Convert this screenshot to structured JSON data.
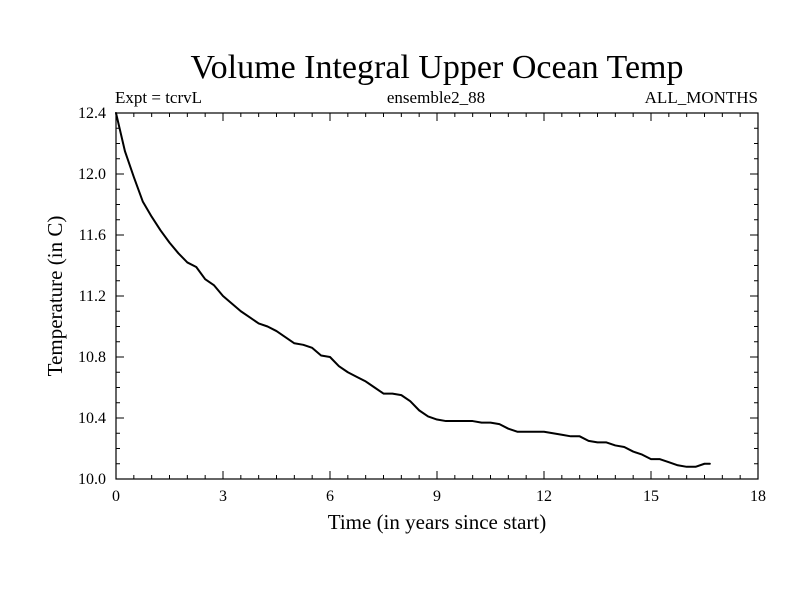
{
  "chart_data": {
    "type": "line",
    "title": "Volume Integral Upper Ocean Temp",
    "subtitle_left": "Expt = tcrvL",
    "subtitle_center": "ensemble2_88",
    "subtitle_right": "ALL_MONTHS",
    "xlabel": "Time (in years since start)",
    "ylabel": "Temperature (in C)",
    "xlim": [
      0,
      18
    ],
    "ylim": [
      10.0,
      12.4
    ],
    "xticks": [
      0,
      3,
      6,
      9,
      12,
      15,
      18
    ],
    "xtick_labels": [
      "0",
      "3",
      "6",
      "9",
      "12",
      "15",
      "18"
    ],
    "yticks": [
      10.0,
      10.4,
      10.8,
      11.2,
      11.6,
      12.0,
      12.4
    ],
    "ytick_labels": [
      "10.0",
      "10.4",
      "10.8",
      "11.2",
      "11.6",
      "12.0",
      "12.4"
    ],
    "grid": false,
    "line_color": "#000000",
    "series": [
      {
        "x": [
          0,
          0.25,
          0.5,
          0.75,
          1.0,
          1.25,
          1.5,
          1.75,
          2.0,
          2.25,
          2.5,
          2.75,
          3.0,
          3.25,
          3.5,
          3.75,
          4.0,
          4.25,
          4.5,
          4.75,
          5.0,
          5.25,
          5.5,
          5.75,
          6.0,
          6.25,
          6.5,
          6.75,
          7.0,
          7.25,
          7.5,
          7.75,
          8.0,
          8.25,
          8.5,
          8.75,
          9.0,
          9.25,
          9.5,
          9.75,
          10.0,
          10.25,
          10.5,
          10.75,
          11.0,
          11.25,
          11.5,
          11.75,
          12.0,
          12.25,
          12.5,
          12.75,
          13.0,
          13.25,
          13.5,
          13.75,
          14.0,
          14.25,
          14.5,
          14.75,
          15.0,
          15.25,
          15.5,
          15.75,
          16.0,
          16.25,
          16.5,
          16.65
        ],
        "values": [
          12.4,
          12.15,
          11.98,
          11.82,
          11.72,
          11.63,
          11.55,
          11.48,
          11.42,
          11.39,
          11.31,
          11.27,
          11.2,
          11.15,
          11.1,
          11.06,
          11.02,
          11.0,
          10.97,
          10.93,
          10.89,
          10.88,
          10.86,
          10.81,
          10.8,
          10.74,
          10.7,
          10.67,
          10.64,
          10.6,
          10.56,
          10.56,
          10.55,
          10.51,
          10.45,
          10.41,
          10.39,
          10.38,
          10.38,
          10.38,
          10.38,
          10.37,
          10.37,
          10.36,
          10.33,
          10.31,
          10.31,
          10.31,
          10.31,
          10.3,
          10.29,
          10.28,
          10.28,
          10.25,
          10.24,
          10.24,
          10.22,
          10.21,
          10.18,
          10.16,
          10.13,
          10.13,
          10.11,
          10.09,
          10.08,
          10.08,
          10.1,
          10.1
        ]
      }
    ]
  }
}
